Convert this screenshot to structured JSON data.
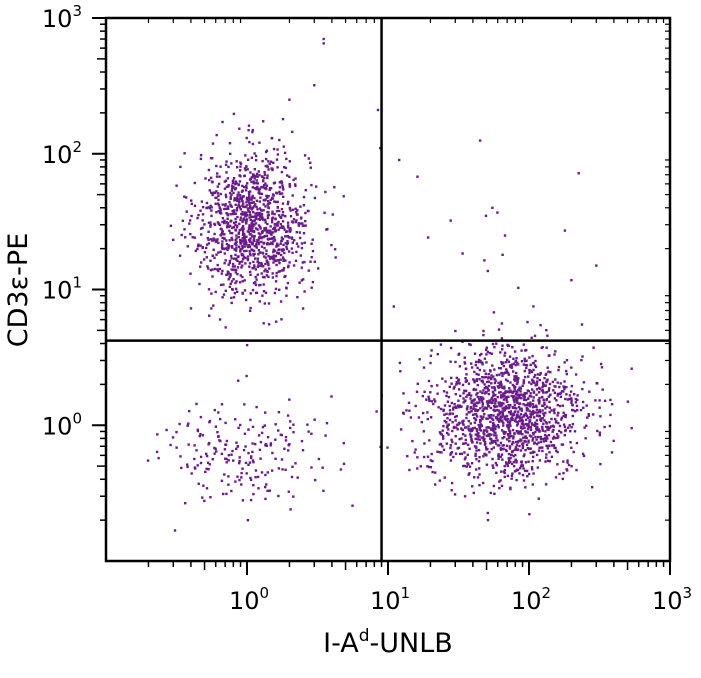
{
  "chart_data": {
    "type": "scatter",
    "subtype": "flow-cytometry-dot-plot",
    "xlabel": {
      "base": "I-A",
      "superscript": "d",
      "suffix": "-UNLB"
    },
    "ylabel": "CD3ε-PE",
    "xscale": "log",
    "yscale": "log",
    "xlim": [
      0.1,
      1000
    ],
    "ylim": [
      0.1,
      1000
    ],
    "x_ticks": [
      {
        "base": "10",
        "exp": "0",
        "value": 1
      },
      {
        "base": "10",
        "exp": "1",
        "value": 10
      },
      {
        "base": "10",
        "exp": "2",
        "value": 100
      },
      {
        "base": "10",
        "exp": "3",
        "value": 1000
      }
    ],
    "y_ticks": [
      {
        "base": "10",
        "exp": "0",
        "value": 1
      },
      {
        "base": "10",
        "exp": "1",
        "value": 10
      },
      {
        "base": "10",
        "exp": "2",
        "value": 100
      },
      {
        "base": "10",
        "exp": "3",
        "value": 1000
      }
    ],
    "quadrant_gates": {
      "x": 9,
      "y": 4.2
    },
    "grid": false,
    "point_color": "#6a1b8a",
    "populations": [
      {
        "name": "CD3+ I-A- (upper-left)",
        "center": [
          1.1,
          30
        ],
        "spread_decades": [
          0.2,
          0.27
        ],
        "count": 1150
      },
      {
        "name": "CD3- I-A+ (lower-right)",
        "center": [
          70,
          1.2
        ],
        "spread_decades": [
          0.28,
          0.24
        ],
        "count": 1500
      },
      {
        "name": "double negative (lower-left)",
        "center": [
          0.9,
          0.65
        ],
        "spread_decades": [
          0.28,
          0.2
        ],
        "count": 210
      },
      {
        "name": "scattered events (upper-right)",
        "center": [
          50,
          20
        ],
        "spread_decades": [
          0.45,
          0.4
        ],
        "count": 14
      }
    ],
    "outliers": [
      [
        3.5,
        700
      ],
      [
        3.5,
        650
      ],
      [
        2.0,
        250
      ],
      [
        1.8,
        180
      ],
      [
        1.5,
        130
      ],
      [
        3.0,
        320
      ],
      [
        8.5,
        210
      ],
      [
        45,
        125
      ],
      [
        8.8,
        110
      ],
      [
        12,
        90
      ],
      [
        55,
        40
      ],
      [
        65,
        18
      ],
      [
        300,
        15
      ],
      [
        11,
        7.5
      ]
    ]
  }
}
